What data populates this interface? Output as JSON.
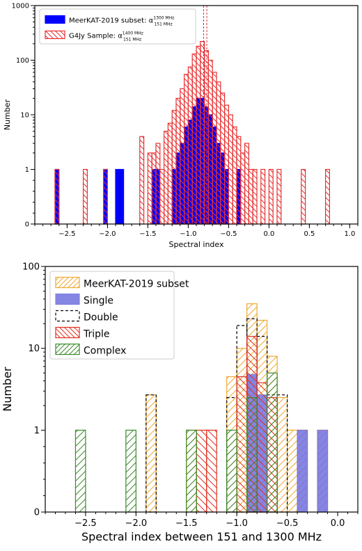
{
  "chart_data": [
    {
      "type": "histogram",
      "xlabel": "Spectral index",
      "ylabel": "Number",
      "xlim": [
        -2.9,
        1.1
      ],
      "ylim": [
        0,
        1000
      ],
      "yscale": "symlog",
      "xticks": [
        "-2.5",
        "-2.0",
        "-1.5",
        "-1.0",
        "-0.5",
        "0.0",
        "0.5",
        "1.0"
      ],
      "yticks": [
        "0",
        "1",
        "10",
        "100",
        "1000"
      ],
      "legend": "top-left",
      "bin_width": 0.05,
      "vlines": [
        {
          "x": -0.81,
          "color": "#4b4bdd"
        },
        {
          "x": -0.77,
          "color": "#e83030"
        }
      ],
      "series": [
        {
          "name": "MeerKAT-2019 subset: α",
          "name_sup": "1300 MHz",
          "name_sub": "151 MHz",
          "style": "filled",
          "color": "#0000ff",
          "bins": [
            {
              "x": -2.625,
              "v": 1
            },
            {
              "x": -2.025,
              "v": 1
            },
            {
              "x": -1.875,
              "v": 1
            },
            {
              "x": -1.825,
              "v": 1
            },
            {
              "x": -1.425,
              "v": 1
            },
            {
              "x": -1.375,
              "v": 1
            },
            {
              "x": -1.175,
              "v": 1
            },
            {
              "x": -1.125,
              "v": 2
            },
            {
              "x": -1.075,
              "v": 3
            },
            {
              "x": -1.025,
              "v": 6
            },
            {
              "x": -0.975,
              "v": 8
            },
            {
              "x": -0.925,
              "v": 14
            },
            {
              "x": -0.875,
              "v": 20
            },
            {
              "x": -0.825,
              "v": 20
            },
            {
              "x": -0.775,
              "v": 14
            },
            {
              "x": -0.725,
              "v": 10
            },
            {
              "x": -0.675,
              "v": 6
            },
            {
              "x": -0.625,
              "v": 3
            },
            {
              "x": -0.575,
              "v": 2
            },
            {
              "x": -0.525,
              "v": 1
            },
            {
              "x": -0.375,
              "v": 1
            }
          ]
        },
        {
          "name": "G4Jy Sample: α",
          "name_sup": "1400 MHz",
          "name_sub": "151 MHz",
          "style": "hatched",
          "color": "#e83030",
          "bins": [
            {
              "x": -2.625,
              "v": 1
            },
            {
              "x": -2.275,
              "v": 1
            },
            {
              "x": -2.025,
              "v": 1
            },
            {
              "x": -1.575,
              "v": 4
            },
            {
              "x": -1.475,
              "v": 2
            },
            {
              "x": -1.425,
              "v": 2
            },
            {
              "x": -1.375,
              "v": 3
            },
            {
              "x": -1.325,
              "v": 1
            },
            {
              "x": -1.275,
              "v": 5
            },
            {
              "x": -1.225,
              "v": 7
            },
            {
              "x": -1.175,
              "v": 12
            },
            {
              "x": -1.125,
              "v": 20
            },
            {
              "x": -1.075,
              "v": 30
            },
            {
              "x": -1.025,
              "v": 55
            },
            {
              "x": -0.975,
              "v": 75
            },
            {
              "x": -0.925,
              "v": 130
            },
            {
              "x": -0.875,
              "v": 180
            },
            {
              "x": -0.825,
              "v": 220
            },
            {
              "x": -0.775,
              "v": 150
            },
            {
              "x": -0.725,
              "v": 100
            },
            {
              "x": -0.675,
              "v": 60
            },
            {
              "x": -0.625,
              "v": 40
            },
            {
              "x": -0.575,
              "v": 25
            },
            {
              "x": -0.525,
              "v": 15
            },
            {
              "x": -0.475,
              "v": 10
            },
            {
              "x": -0.425,
              "v": 6
            },
            {
              "x": -0.375,
              "v": 4
            },
            {
              "x": -0.325,
              "v": 2
            },
            {
              "x": -0.275,
              "v": 3
            },
            {
              "x": -0.225,
              "v": 1
            },
            {
              "x": -0.175,
              "v": 1
            },
            {
              "x": -0.075,
              "v": 1
            },
            {
              "x": 0.025,
              "v": 1
            },
            {
              "x": 0.125,
              "v": 1
            },
            {
              "x": 0.425,
              "v": 1
            },
            {
              "x": 0.725,
              "v": 1
            }
          ]
        }
      ]
    },
    {
      "type": "histogram",
      "xlabel": "Spectral index between 151 and 1300 MHz",
      "ylabel": "Number",
      "xlim": [
        -2.9,
        0.2
      ],
      "ylim": [
        0,
        100
      ],
      "yscale": "symlog",
      "xticks": [
        "-2.5",
        "-2.0",
        "-1.5",
        "-1.0",
        "-0.5",
        "0.0"
      ],
      "yticks": [
        "0",
        "1",
        "10",
        "100"
      ],
      "legend": "top-left",
      "bin_width": 0.1,
      "series": [
        {
          "name": "MeerKAT-2019 subset",
          "style": "hatched",
          "color": "#f0a830",
          "bins": [
            {
              "x": -1.85,
              "v": 2.7
            },
            {
              "x": -1.45,
              "v": 1
            },
            {
              "x": -1.05,
              "v": 4.5
            },
            {
              "x": -0.95,
              "v": 10
            },
            {
              "x": -0.85,
              "v": 35
            },
            {
              "x": -0.75,
              "v": 22
            },
            {
              "x": -0.65,
              "v": 8
            },
            {
              "x": -0.55,
              "v": 2.5
            },
            {
              "x": -0.45,
              "v": 1
            },
            {
              "x": -0.35,
              "v": 1
            },
            {
              "x": -0.15,
              "v": 1
            }
          ]
        },
        {
          "name": "Single",
          "style": "filled",
          "color": "#7070e0",
          "bins": [
            {
              "x": -0.85,
              "v": 4.8
            },
            {
              "x": -0.75,
              "v": 2.7
            },
            {
              "x": -0.35,
              "v": 1
            },
            {
              "x": -0.15,
              "v": 1
            }
          ]
        },
        {
          "name": "Double",
          "style": "dashed",
          "color": "#000000",
          "bins": [
            {
              "x": -1.85,
              "v": 2.7
            },
            {
              "x": -1.05,
              "v": 2.5
            },
            {
              "x": -0.95,
              "v": 19
            },
            {
              "x": -0.85,
              "v": 23
            },
            {
              "x": -0.75,
              "v": 14
            },
            {
              "x": -0.65,
              "v": 2.7
            },
            {
              "x": -0.55,
              "v": 2.7
            }
          ]
        },
        {
          "name": "Triple",
          "style": "hatched",
          "color": "#e03020",
          "bins": [
            {
              "x": -1.35,
              "v": 1
            },
            {
              "x": -1.25,
              "v": 1
            },
            {
              "x": -0.95,
              "v": 4.5
            },
            {
              "x": -0.85,
              "v": 14
            },
            {
              "x": -0.75,
              "v": 3.8
            },
            {
              "x": -0.65,
              "v": 2.5
            }
          ]
        },
        {
          "name": "Complex",
          "style": "hatched",
          "color": "#3a8a2a",
          "bins": [
            {
              "x": -2.55,
              "v": 1
            },
            {
              "x": -2.05,
              "v": 1
            },
            {
              "x": -1.45,
              "v": 1
            },
            {
              "x": -1.05,
              "v": 1
            },
            {
              "x": -0.85,
              "v": 2.5
            },
            {
              "x": -0.65,
              "v": 5
            }
          ]
        }
      ]
    }
  ]
}
